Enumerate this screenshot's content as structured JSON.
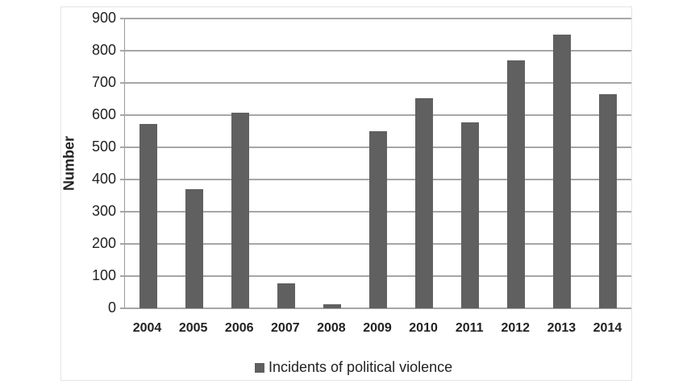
{
  "chart_data": {
    "type": "bar",
    "title": "",
    "xlabel": "",
    "ylabel": "Number",
    "ylim": [
      0,
      900
    ],
    "yticks": [
      0,
      100,
      200,
      300,
      400,
      500,
      600,
      700,
      800,
      900
    ],
    "grid": true,
    "legend_position": "bottom",
    "categories": [
      "2004",
      "2005",
      "2006",
      "2007",
      "2008",
      "2009",
      "2010",
      "2011",
      "2012",
      "2013",
      "2014"
    ],
    "series": [
      {
        "name": "Incidents of political violence",
        "color": "#606060",
        "values": [
          573,
          370,
          607,
          78,
          12,
          551,
          652,
          577,
          770,
          850,
          665
        ]
      }
    ]
  }
}
